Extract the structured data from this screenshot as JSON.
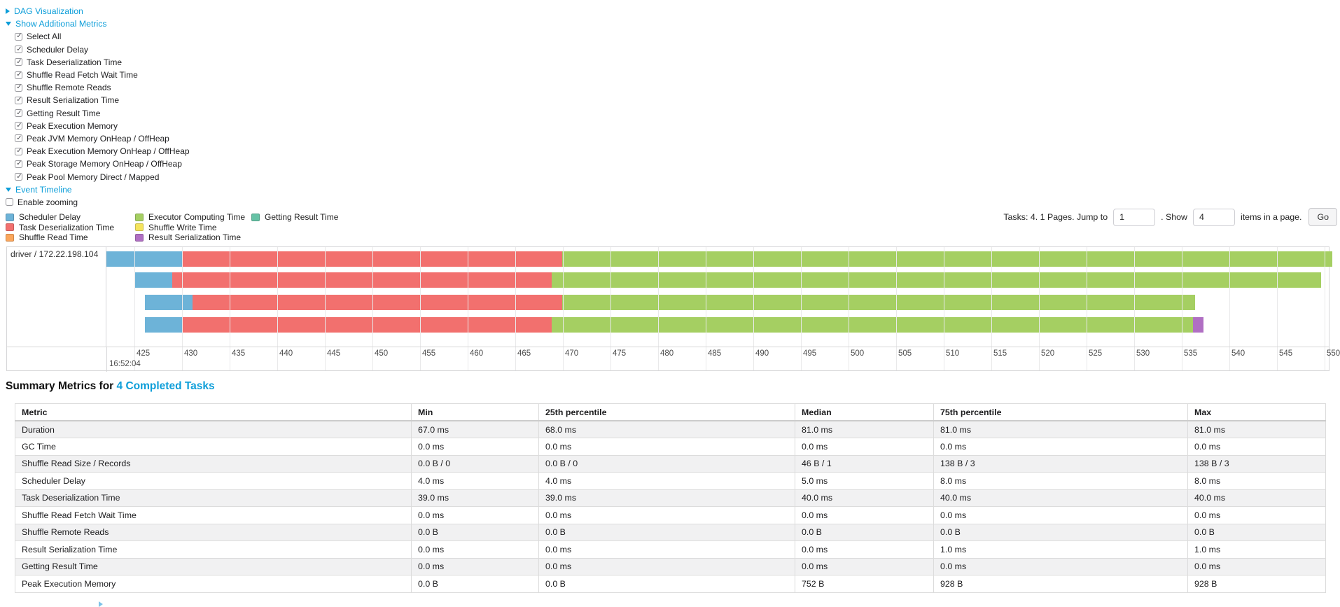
{
  "controls": {
    "dag": {
      "label": "DAG Visualization"
    },
    "show_additional_metrics": {
      "label": "Show Additional Metrics"
    },
    "metric_checkboxes": [
      {
        "label": "Select All",
        "checked": true
      },
      {
        "label": "Scheduler Delay",
        "checked": true
      },
      {
        "label": "Task Deserialization Time",
        "checked": true
      },
      {
        "label": "Shuffle Read Fetch Wait Time",
        "checked": true
      },
      {
        "label": "Shuffle Remote Reads",
        "checked": true
      },
      {
        "label": "Result Serialization Time",
        "checked": true
      },
      {
        "label": "Getting Result Time",
        "checked": true
      },
      {
        "label": "Peak Execution Memory",
        "checked": true
      },
      {
        "label": "Peak JVM Memory OnHeap / OffHeap",
        "checked": true
      },
      {
        "label": "Peak Execution Memory OnHeap / OffHeap",
        "checked": true
      },
      {
        "label": "Peak Storage Memory OnHeap / OffHeap",
        "checked": true
      },
      {
        "label": "Peak Pool Memory Direct / Mapped",
        "checked": true
      }
    ],
    "event_timeline": {
      "label": "Event Timeline"
    },
    "enable_zooming": {
      "label": "Enable zooming",
      "checked": false
    }
  },
  "legend": {
    "columns": [
      [
        {
          "label": "Scheduler Delay",
          "key": "scheduler_delay"
        },
        {
          "label": "Task Deserialization Time",
          "key": "task_deserialization"
        },
        {
          "label": "Shuffle Read Time",
          "key": "shuffle_read"
        }
      ],
      [
        {
          "label": "Executor Computing Time",
          "key": "executor_computing"
        },
        {
          "label": "Shuffle Write Time",
          "key": "shuffle_write"
        },
        {
          "label": "Result Serialization Time",
          "key": "result_serialization"
        }
      ],
      [
        {
          "label": "Getting Result Time",
          "key": "getting_result"
        }
      ]
    ]
  },
  "colors": {
    "scheduler_delay": "#6DB3D8",
    "task_deserialization": "#F2706E",
    "shuffle_read": "#FBA65C",
    "executor_computing": "#A5CF62",
    "shuffle_write": "#F5E45C",
    "result_serialization": "#B06FC3",
    "getting_result": "#66C2A5"
  },
  "pagination": {
    "tasks_text": "Tasks: 4. 1 Pages. Jump to",
    "jump_value": "1",
    "show_text": ". Show",
    "show_value": "4",
    "items_text": "items in a page.",
    "go_label": "Go"
  },
  "chart_data": {
    "type": "timeline",
    "group_label": "driver / 172.22.198.104",
    "x_axis": {
      "unit": "ms",
      "major_label": "16:52:04",
      "tick_values": [
        425,
        430,
        435,
        440,
        445,
        450,
        455,
        460,
        465,
        470,
        475,
        480,
        485,
        490,
        495,
        500,
        505,
        510,
        515,
        520,
        525,
        530,
        535,
        540,
        545,
        550
      ]
    },
    "tasks": [
      {
        "segments": [
          {
            "from": 422.0,
            "to": 430.0,
            "kind": "scheduler_delay"
          },
          {
            "from": 430.0,
            "to": 469.9,
            "kind": "task_deserialization"
          },
          {
            "from": 469.9,
            "to": 550.8,
            "kind": "executor_computing"
          }
        ]
      },
      {
        "segments": [
          {
            "from": 425.1,
            "to": 429.0,
            "kind": "scheduler_delay"
          },
          {
            "from": 429.0,
            "to": 468.8,
            "kind": "task_deserialization"
          },
          {
            "from": 468.8,
            "to": 549.6,
            "kind": "executor_computing"
          }
        ]
      },
      {
        "segments": [
          {
            "from": 426.1,
            "to": 431.1,
            "kind": "scheduler_delay"
          },
          {
            "from": 431.1,
            "to": 469.9,
            "kind": "task_deserialization"
          },
          {
            "from": 469.9,
            "to": 536.4,
            "kind": "executor_computing"
          }
        ]
      },
      {
        "segments": [
          {
            "from": 426.1,
            "to": 430.1,
            "kind": "scheduler_delay"
          },
          {
            "from": 430.1,
            "to": 468.8,
            "kind": "task_deserialization"
          },
          {
            "from": 468.8,
            "to": 536.2,
            "kind": "executor_computing"
          },
          {
            "from": 536.2,
            "to": 537.3,
            "kind": "result_serialization"
          }
        ]
      }
    ]
  },
  "summary": {
    "heading_prefix": "Summary Metrics for",
    "heading_link": "4 Completed Tasks",
    "table": {
      "headers": [
        "Metric",
        "Min",
        "25th percentile",
        "Median",
        "75th percentile",
        "Max"
      ],
      "rows": [
        {
          "metric": "Duration",
          "values": [
            "67.0 ms",
            "68.0 ms",
            "81.0 ms",
            "81.0 ms",
            "81.0 ms"
          ]
        },
        {
          "metric": "GC Time",
          "values": [
            "0.0 ms",
            "0.0 ms",
            "0.0 ms",
            "0.0 ms",
            "0.0 ms"
          ]
        },
        {
          "metric": "Shuffle Read Size / Records",
          "values": [
            "0.0 B / 0",
            "0.0 B / 0",
            "46 B / 1",
            "138 B / 3",
            "138 B / 3"
          ]
        },
        {
          "metric": "Scheduler Delay",
          "values": [
            "4.0 ms",
            "4.0 ms",
            "5.0 ms",
            "8.0 ms",
            "8.0 ms"
          ]
        },
        {
          "metric": "Task Deserialization Time",
          "values": [
            "39.0 ms",
            "39.0 ms",
            "40.0 ms",
            "40.0 ms",
            "40.0 ms"
          ]
        },
        {
          "metric": "Shuffle Read Fetch Wait Time",
          "values": [
            "0.0 ms",
            "0.0 ms",
            "0.0 ms",
            "0.0 ms",
            "0.0 ms"
          ]
        },
        {
          "metric": "Shuffle Remote Reads",
          "values": [
            "0.0 B",
            "0.0 B",
            "0.0 B",
            "0.0 B",
            "0.0 B"
          ]
        },
        {
          "metric": "Result Serialization Time",
          "values": [
            "0.0 ms",
            "0.0 ms",
            "0.0 ms",
            "1.0 ms",
            "1.0 ms"
          ]
        },
        {
          "metric": "Getting Result Time",
          "values": [
            "0.0 ms",
            "0.0 ms",
            "0.0 ms",
            "0.0 ms",
            "0.0 ms"
          ]
        },
        {
          "metric": "Peak Execution Memory",
          "values": [
            "0.0 B",
            "0.0 B",
            "752 B",
            "928 B",
            "928 B"
          ]
        }
      ]
    }
  }
}
